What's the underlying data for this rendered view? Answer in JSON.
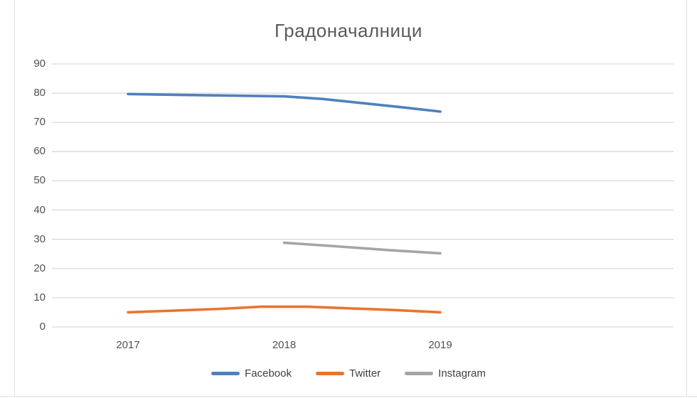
{
  "chart_data": {
    "type": "line",
    "title": "Градоначалници",
    "xlabel": "",
    "ylabel": "",
    "ylim": [
      0,
      90
    ],
    "xlim": [
      2016.5,
      2020.5
    ],
    "grid": "horizontal",
    "legend_position": "bottom",
    "y_ticks": [
      0,
      10,
      20,
      30,
      40,
      50,
      60,
      70,
      80,
      90
    ],
    "x_ticks": [
      {
        "value": 2017,
        "label": "2017"
      },
      {
        "value": 2018,
        "label": "2018"
      },
      {
        "value": 2019,
        "label": "2019"
      }
    ],
    "series": [
      {
        "name": "Facebook",
        "color": "#4E81BD",
        "points": [
          [
            2017,
            79.7
          ],
          [
            2017.35,
            79.4
          ],
          [
            2017.75,
            79.1
          ],
          [
            2018,
            78.9
          ],
          [
            2018.25,
            78.0
          ],
          [
            2018.5,
            76.6
          ],
          [
            2018.75,
            75.2
          ],
          [
            2019,
            73.7
          ]
        ]
      },
      {
        "name": "Twitter",
        "color": "#E8752D",
        "points": [
          [
            2017,
            5.0
          ],
          [
            2017.3,
            5.6
          ],
          [
            2017.6,
            6.2
          ],
          [
            2017.85,
            6.9
          ],
          [
            2018.15,
            6.9
          ],
          [
            2018.4,
            6.4
          ],
          [
            2018.7,
            5.8
          ],
          [
            2019,
            5.0
          ]
        ]
      },
      {
        "name": "Instagram",
        "color": "#A5A5A5",
        "points": [
          [
            2018,
            28.8
          ],
          [
            2018.33,
            27.6
          ],
          [
            2018.67,
            26.3
          ],
          [
            2019,
            25.2
          ]
        ]
      }
    ]
  },
  "colors": {
    "background": "#FFFFFF",
    "gridline": "#D9D9D9",
    "title_text": "#595959",
    "axis_text": "#515151",
    "legend_text": "#404040",
    "frame_line": "#E0E0E0"
  }
}
